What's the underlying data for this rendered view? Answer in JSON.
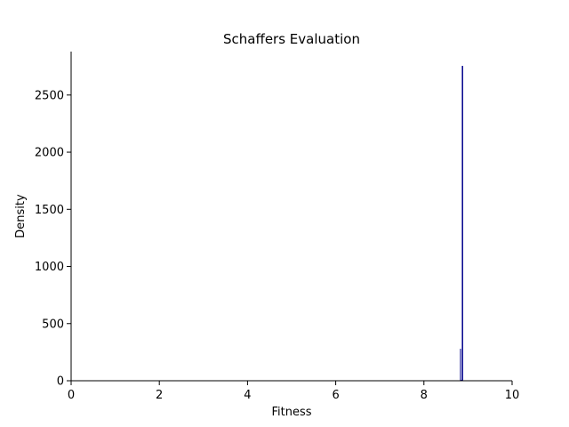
{
  "chart_data": {
    "type": "bar",
    "title": "Schaffers Evaluation",
    "xlabel": "Fitness",
    "ylabel": "Density",
    "xlim": [
      0,
      10
    ],
    "ylim": [
      0,
      2880
    ],
    "xticks": [
      0,
      2,
      4,
      6,
      8,
      10
    ],
    "yticks": [
      0,
      500,
      1000,
      1500,
      2000,
      2500
    ],
    "grid": false,
    "bar_color": "#00008b",
    "bins": [
      {
        "x0": 8.82,
        "x1": 8.84,
        "value": 280
      },
      {
        "x0": 8.84,
        "x1": 8.86,
        "value": 8
      },
      {
        "x0": 8.86,
        "x1": 8.89,
        "value": 2755
      }
    ]
  }
}
